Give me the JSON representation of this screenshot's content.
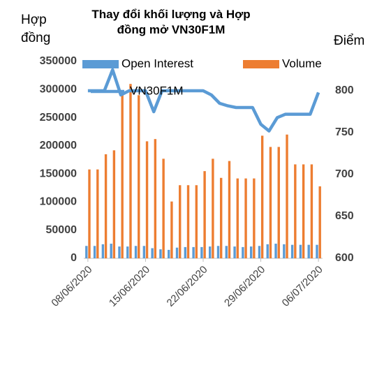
{
  "chart_data": {
    "type": "combo",
    "title": "Thay đổi khối lượng và Hợp đồng mở VN30F1M",
    "y_label": "Hợp đồng",
    "y2_label": "Điểm",
    "categories": [
      "08/06/2020",
      null,
      null,
      null,
      null,
      null,
      null,
      "15/06/2020",
      null,
      null,
      null,
      null,
      null,
      null,
      "22/06/2020",
      null,
      null,
      null,
      null,
      null,
      null,
      "29/06/2020",
      null,
      null,
      null,
      null,
      null,
      null,
      "06/07/2020"
    ],
    "series": [
      {
        "name": "Open Interest",
        "type": "bar",
        "color": "#5b9bd5",
        "values": [
          22000,
          22000,
          25000,
          26000,
          21000,
          21000,
          22000,
          22000,
          18000,
          16000,
          15000,
          19000,
          20000,
          20000,
          20000,
          21000,
          22000,
          22000,
          21000,
          20000,
          21000,
          22000,
          25000,
          26000,
          25000,
          24000,
          24000,
          24000,
          24000
        ]
      },
      {
        "name": "Volume",
        "type": "bar",
        "color": "#ed7d31",
        "values": [
          158000,
          158000,
          185000,
          192000,
          295000,
          310000,
          290000,
          208000,
          212000,
          177000,
          101000,
          130000,
          130000,
          130000,
          155000,
          177000,
          143000,
          173000,
          142000,
          142000,
          142000,
          218000,
          198000,
          198000,
          220000,
          167000,
          167000,
          167000,
          128000
        ]
      },
      {
        "name": "VN30F1M",
        "type": "line",
        "axis": "y2",
        "color": "#5b9bd5",
        "values": [
          800,
          800,
          800,
          825,
          795,
          800,
          800,
          800,
          775,
          800,
          800,
          800,
          800,
          800,
          800,
          795,
          785,
          782,
          780,
          780,
          780,
          760,
          752,
          768,
          772,
          772,
          772,
          772,
          798
        ]
      }
    ],
    "ylim": [
      0,
      350000
    ],
    "yticks": [
      0,
      50000,
      100000,
      150000,
      200000,
      250000,
      300000,
      350000
    ],
    "y2lim": [
      600,
      835
    ],
    "y2ticks": [
      600,
      650,
      700,
      750,
      800
    ],
    "grid": false
  }
}
